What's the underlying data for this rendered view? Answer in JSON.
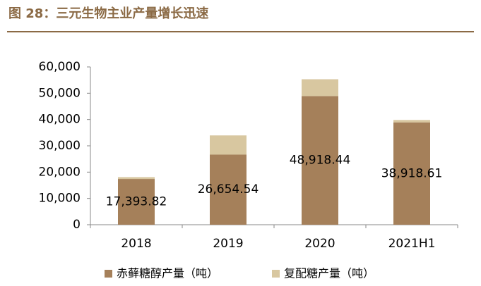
{
  "chart_data": {
    "type": "stacked_bar",
    "title": "图 28：三元生物主业产量增长迅速",
    "categories": [
      "2018",
      "2019",
      "2020",
      "2021H1"
    ],
    "series": [
      {
        "name": "赤藓糖醇产量（吨）",
        "color": "#a5805a",
        "values": [
          17393.82,
          26654.54,
          48918.44,
          38918.61
        ],
        "value_labels": [
          "17,393.82",
          "26,654.54",
          "48,918.44",
          "38,918.61"
        ]
      },
      {
        "name": "复配糖产量（吨）",
        "color": "#d8c7a0",
        "values": [
          700,
          7300,
          6400,
          900
        ]
      }
    ],
    "ylim": [
      0,
      60000
    ],
    "yticks": [
      0,
      {
        "value": 10000,
        "label": "10,000"
      },
      {
        "value": 20000,
        "label": "20,000"
      },
      {
        "value": 30000,
        "label": "30,000"
      },
      {
        "value": 40000,
        "label": "40,000"
      },
      {
        "value": 50000,
        "label": "50,000"
      },
      {
        "value": 60000,
        "label": "60,000"
      }
    ],
    "legend": "bottom"
  }
}
